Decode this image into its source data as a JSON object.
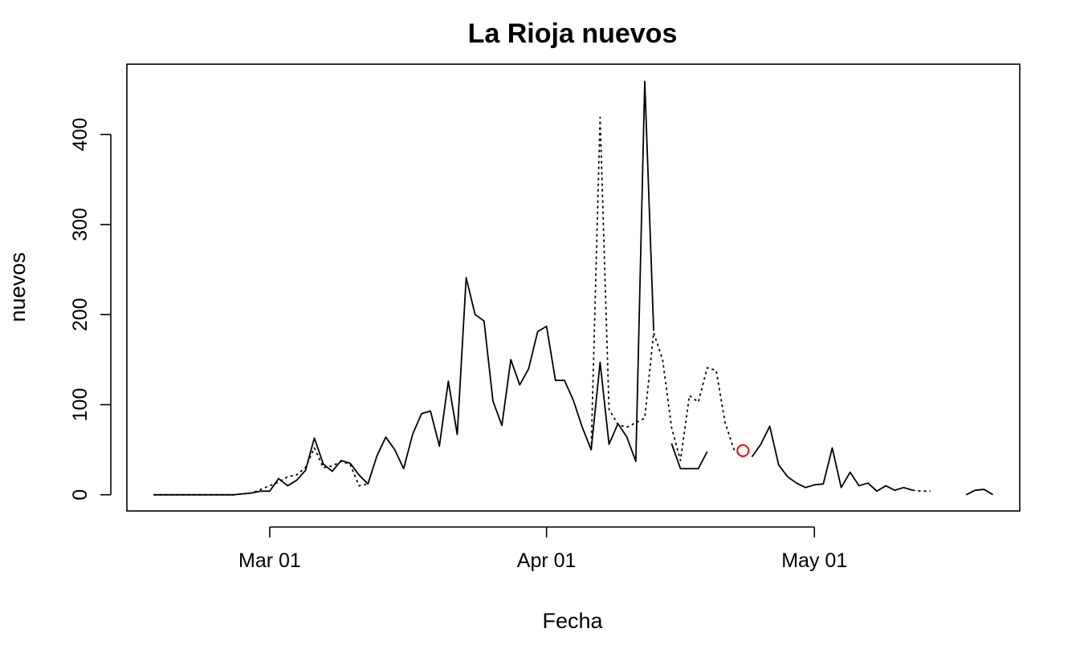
{
  "chart_data": {
    "type": "line",
    "title": "La Rioja nuevos",
    "xlabel": "Fecha",
    "ylabel": "nuevos",
    "x_start_date": "2020-02-17",
    "x_tick_labels": [
      "Mar 01",
      "Apr 01",
      "May 01"
    ],
    "y_ticks": [
      0,
      100,
      200,
      300,
      400
    ],
    "xlim": [
      "2020-02-14",
      "2020-05-24"
    ],
    "ylim": [
      -18,
      478
    ],
    "legend": "none",
    "grid": false,
    "series": [
      {
        "style": "solid",
        "color": "#000000",
        "x": [
          "2020-02-17",
          "2020-02-18",
          "2020-02-19",
          "2020-02-20",
          "2020-02-21",
          "2020-02-22",
          "2020-02-23",
          "2020-02-24",
          "2020-02-25",
          "2020-02-26",
          "2020-02-27",
          "2020-02-28",
          "2020-02-29",
          "2020-03-01",
          "2020-03-02",
          "2020-03-03",
          "2020-03-04",
          "2020-03-05",
          "2020-03-06",
          "2020-03-07",
          "2020-03-08",
          "2020-03-09",
          "2020-03-10",
          "2020-03-11",
          "2020-03-12",
          "2020-03-13",
          "2020-03-14",
          "2020-03-15",
          "2020-03-16",
          "2020-03-17",
          "2020-03-18",
          "2020-03-19",
          "2020-03-20",
          "2020-03-21",
          "2020-03-22",
          "2020-03-23",
          "2020-03-24",
          "2020-03-25",
          "2020-03-26",
          "2020-03-27",
          "2020-03-28",
          "2020-03-29",
          "2020-03-30",
          "2020-03-31",
          "2020-04-01",
          "2020-04-02",
          "2020-04-03",
          "2020-04-04",
          "2020-04-05",
          "2020-04-06",
          "2020-04-07",
          "2020-04-08",
          "2020-04-09",
          "2020-04-10",
          "2020-04-11",
          "2020-04-12",
          "2020-04-13",
          "2020-04-14",
          "2020-04-15",
          "2020-04-16",
          "2020-04-17",
          "2020-04-18",
          "2020-04-19",
          "2020-04-20",
          "2020-04-21",
          "2020-04-22",
          "2020-04-23",
          "2020-04-24",
          "2020-04-25",
          "2020-04-26",
          "2020-04-27",
          "2020-04-28",
          "2020-04-29",
          "2020-04-30",
          "2020-05-01",
          "2020-05-02",
          "2020-05-03",
          "2020-05-04",
          "2020-05-05",
          "2020-05-06",
          "2020-05-07",
          "2020-05-08",
          "2020-05-09",
          "2020-05-10",
          "2020-05-11",
          "2020-05-12",
          "2020-05-13",
          "2020-05-14",
          "2020-05-15",
          "2020-05-16",
          "2020-05-17",
          "2020-05-18",
          "2020-05-19",
          "2020-05-20",
          "2020-05-21"
        ],
        "values": [
          0,
          0,
          0,
          0,
          0,
          0,
          0,
          0,
          0,
          0,
          1,
          2,
          4,
          4,
          18,
          10,
          16,
          27,
          63,
          34,
          26,
          38,
          35,
          22,
          12,
          43,
          64,
          50,
          29,
          67,
          90,
          93,
          54,
          126,
          67,
          241,
          200,
          193,
          104,
          77,
          150,
          122,
          140,
          181,
          187,
          127,
          127,
          105,
          75,
          50,
          147,
          56,
          79,
          64,
          37,
          459,
          182,
          null,
          57,
          29,
          29,
          29,
          48,
          null,
          null,
          null,
          null,
          42,
          56,
          76,
          33,
          20,
          13,
          8,
          11,
          12,
          52,
          8,
          25,
          10,
          13,
          4,
          10,
          5,
          8,
          5,
          null,
          null,
          null,
          null,
          null,
          0,
          5,
          6,
          0
        ]
      },
      {
        "style": "dotted",
        "color": "#000000",
        "x": [
          "2020-02-17",
          "2020-02-18",
          "2020-02-19",
          "2020-02-20",
          "2020-02-21",
          "2020-02-22",
          "2020-02-23",
          "2020-02-24",
          "2020-02-25",
          "2020-02-26",
          "2020-02-27",
          "2020-02-28",
          "2020-02-29",
          "2020-03-01",
          "2020-03-02",
          "2020-03-03",
          "2020-03-04",
          "2020-03-05",
          "2020-03-06",
          "2020-03-07",
          "2020-03-08",
          "2020-03-09",
          "2020-03-10",
          "2020-03-11",
          "2020-03-12",
          "2020-03-13",
          "2020-03-14",
          "2020-03-15",
          "2020-03-16",
          "2020-03-17",
          "2020-03-18",
          "2020-03-19",
          "2020-03-20",
          "2020-03-21",
          "2020-03-22",
          "2020-03-23",
          "2020-03-24",
          "2020-03-25",
          "2020-03-26",
          "2020-03-27",
          "2020-03-28",
          "2020-03-29",
          "2020-03-30",
          "2020-03-31",
          "2020-04-01",
          "2020-04-02",
          "2020-04-03",
          "2020-04-04",
          "2020-04-05",
          "2020-04-06",
          "2020-04-07",
          "2020-04-08",
          "2020-04-09",
          "2020-04-10",
          "2020-04-11",
          "2020-04-12",
          "2020-04-13",
          "2020-04-14",
          "2020-04-15",
          "2020-04-16",
          "2020-04-17",
          "2020-04-18",
          "2020-04-19",
          "2020-04-20",
          "2020-04-21",
          "2020-04-22",
          "2020-04-23",
          "2020-04-24",
          "2020-04-25",
          "2020-04-26",
          "2020-04-27",
          "2020-04-28",
          "2020-04-29",
          "2020-04-30",
          "2020-05-01",
          "2020-05-02",
          "2020-05-03",
          "2020-05-04",
          "2020-05-05",
          "2020-05-06",
          "2020-05-07",
          "2020-05-08",
          "2020-05-09",
          "2020-05-10",
          "2020-05-11",
          "2020-05-12",
          "2020-05-13",
          "2020-05-14",
          "2020-05-15",
          "2020-05-16",
          "2020-05-17",
          "2020-05-18",
          "2020-05-19",
          "2020-05-20",
          "2020-05-21"
        ],
        "values": [
          0,
          0,
          0,
          0,
          0,
          0,
          0,
          0,
          0,
          0,
          1,
          2,
          6,
          10,
          14,
          20,
          22,
          30,
          52,
          30,
          32,
          37,
          34,
          10,
          12,
          null,
          null,
          null,
          null,
          null,
          null,
          null,
          null,
          null,
          null,
          null,
          null,
          null,
          null,
          null,
          null,
          null,
          null,
          null,
          null,
          null,
          null,
          null,
          null,
          50,
          419,
          95,
          78,
          75,
          80,
          85,
          180,
          150,
          75,
          38,
          110,
          103,
          141,
          138,
          80,
          50,
          42,
          null,
          null,
          null,
          null,
          null,
          null,
          null,
          null,
          null,
          null,
          null,
          null,
          null,
          null,
          null,
          null,
          null,
          null,
          5,
          4,
          4,
          null,
          null,
          null,
          null,
          null,
          null,
          null
        ]
      }
    ],
    "points": [
      {
        "x": "2020-04-23",
        "y": 49,
        "color": "#ff0000",
        "shape": "open-circle"
      }
    ]
  }
}
